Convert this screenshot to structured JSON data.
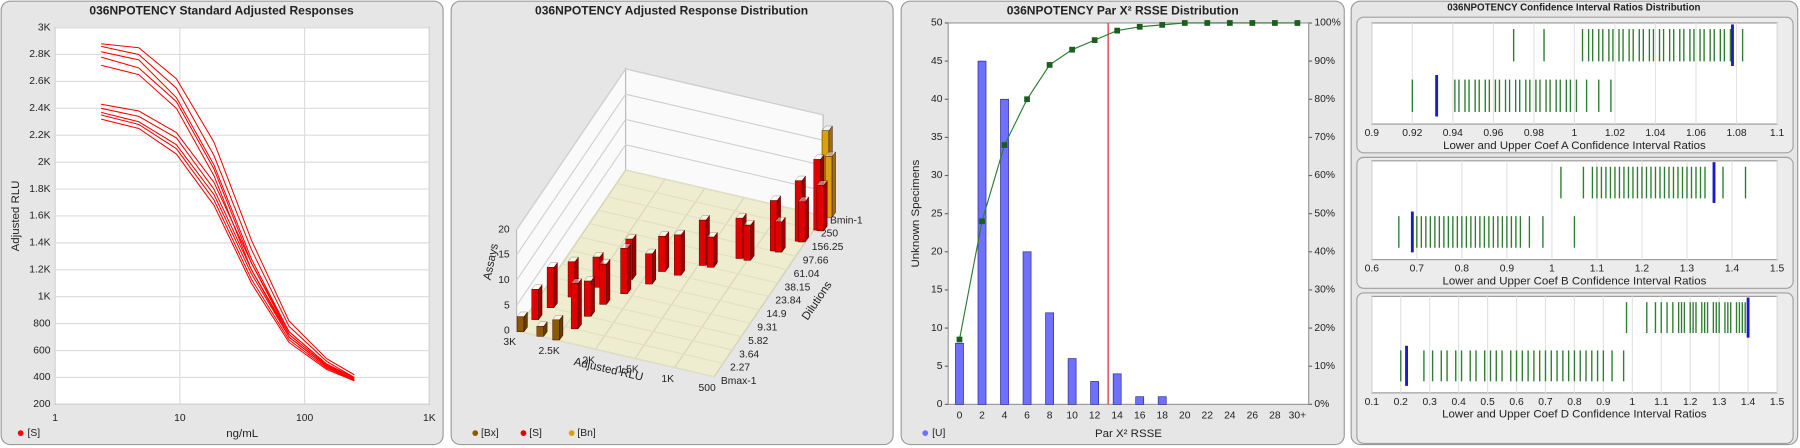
{
  "chart_data": [
    {
      "type": "line",
      "title": "036NPOTENCY Standard Adjusted Responses",
      "xlabel": "ng/mL",
      "ylabel": "Adjusted RLU",
      "xscale": "log",
      "xlim": [
        1,
        1000
      ],
      "xticks": [
        1,
        10,
        100,
        {
          "value": 1000,
          "label": "1K"
        }
      ],
      "ylim": [
        200,
        3000
      ],
      "yticks": [
        200,
        400,
        600,
        800,
        {
          "value": 1000,
          "label": "1K"
        },
        {
          "value": 1200,
          "label": "1.2K"
        },
        {
          "value": 1400,
          "label": "1.4K"
        },
        {
          "value": 1600,
          "label": "1.6K"
        },
        {
          "value": 1800,
          "label": "1.8K"
        },
        {
          "value": 2000,
          "label": "2K"
        },
        {
          "value": 2200,
          "label": "2.2K"
        },
        {
          "value": 2400,
          "label": "2.4K"
        },
        {
          "value": 2600,
          "label": "2.6K"
        },
        {
          "value": 2800,
          "label": "2.8K"
        },
        {
          "value": 3000,
          "label": "3K"
        }
      ],
      "grid": true,
      "legend": "bottom-left",
      "series": [
        {
          "name": "[S]",
          "color": "#ff0000",
          "x": [
            2.34,
            4.69,
            9.38,
            18.75,
            37.5,
            75,
            150,
            250
          ],
          "values": [
            [
              2880,
              2850,
              2620,
              2150,
              1420,
              820,
              540,
              420
            ],
            [
              2860,
              2800,
              2550,
              2050,
              1350,
              780,
              520,
              400
            ],
            [
              2820,
              2760,
              2480,
              1980,
              1280,
              740,
              500,
              390
            ],
            [
              2780,
              2700,
              2450,
              1950,
              1250,
              720,
              490,
              380
            ],
            [
              2720,
              2650,
              2400,
              1900,
              1200,
              700,
              480,
              375
            ],
            [
              2430,
              2380,
              2220,
              1850,
              1250,
              740,
              500,
              400
            ],
            [
              2400,
              2340,
              2180,
              1800,
              1200,
              720,
              490,
              395
            ],
            [
              2370,
              2300,
              2130,
              1760,
              1170,
              700,
              480,
              385
            ],
            [
              2350,
              2280,
              2100,
              1720,
              1130,
              680,
              470,
              380
            ],
            [
              2320,
              2250,
              2060,
              1680,
              1100,
              660,
              460,
              375
            ]
          ]
        }
      ]
    },
    {
      "type": "bar3d",
      "title": "036NPOTENCY Adjusted Response Distribution",
      "xlabel": "Adjusted RLU",
      "ylabel": "Dilutions",
      "zlabel": "Assays",
      "xlim": [
        3000,
        500
      ],
      "xticks": [
        500,
        {
          "value": 1000,
          "label": "1K"
        },
        {
          "value": 1500,
          "label": "1.5K"
        },
        {
          "value": 2000,
          "label": "2K"
        },
        {
          "value": 2500,
          "label": "2.5K"
        },
        {
          "value": 3000,
          "label": "3K"
        }
      ],
      "categories": [
        "Bmax-1",
        "2.27",
        "3.64",
        "5.82",
        "9.31",
        "14.9",
        "23.84",
        "38.15",
        "61.04",
        "97.66",
        "156.25",
        "250",
        "Bmin-1"
      ],
      "zlim": [
        0,
        20
      ],
      "zticks": [
        0,
        5,
        10,
        15,
        20
      ],
      "legend": "bottom-left",
      "series": [
        {
          "name": "[Bx]",
          "color": "#8b5a00",
          "dilution": [
            "Bmax-1",
            "Bmax-1",
            "Bmax-1"
          ],
          "x": [
            2950,
            2700,
            2500
          ],
          "values": [
            3,
            2,
            4
          ]
        },
        {
          "name": "[S]",
          "color": "#e00000",
          "dilution": [
            "2.27",
            "2.27",
            "3.64",
            "3.64",
            "5.82",
            "5.82",
            "9.31",
            "9.31",
            "14.9",
            "14.9",
            "23.84",
            "23.84",
            "38.15",
            "38.15",
            "61.04",
            "61.04",
            "97.66",
            "97.66",
            "156.25",
            "156.25",
            "250",
            "250"
          ],
          "x": [
            2880,
            2380,
            2800,
            2330,
            2650,
            2250,
            2450,
            2100,
            2150,
            1900,
            1850,
            1650,
            1450,
            1350,
            1100,
            1000,
            780,
            720,
            580,
            540,
            460,
            420
          ],
          "values": [
            6,
            9,
            8,
            7,
            7,
            8,
            6,
            9,
            8,
            6,
            7,
            8,
            9,
            6,
            8,
            7,
            10,
            6,
            12,
            8,
            14,
            9
          ]
        },
        {
          "name": "[Bn]",
          "color": "#d9a010",
          "dilution": [
            "Bmin-1",
            "Bmin-1"
          ],
          "x": [
            470,
            430
          ],
          "values": [
            17,
            12
          ]
        }
      ]
    },
    {
      "type": "bar+line",
      "title": "036NPOTENCY Par X² RSSE Distribution",
      "xlabel": "Par X² RSSE",
      "ylabel": "Unknown Specimens",
      "categories": [
        "0",
        "2",
        "4",
        "6",
        "8",
        "10",
        "12",
        "14",
        "16",
        "18",
        "20",
        "22",
        "24",
        "26",
        "28",
        "30+"
      ],
      "ylim": [
        0,
        50
      ],
      "yticks": [
        0,
        5,
        10,
        15,
        20,
        25,
        30,
        35,
        40,
        45,
        50
      ],
      "y2lim": [
        0,
        100
      ],
      "y2ticks": [
        {
          "value": 0,
          "label": "0%"
        },
        {
          "value": 10,
          "label": "10%"
        },
        {
          "value": 20,
          "label": "20%"
        },
        {
          "value": 30,
          "label": "30%"
        },
        {
          "value": 40,
          "label": "40%"
        },
        {
          "value": 50,
          "label": "50%"
        },
        {
          "value": 60,
          "label": "60%"
        },
        {
          "value": 70,
          "label": "70%"
        },
        {
          "value": 80,
          "label": "80%"
        },
        {
          "value": 90,
          "label": "90%"
        },
        {
          "value": 100,
          "label": "100%"
        }
      ],
      "legend": "bottom-left",
      "threshold": 13.2,
      "threshold_color": "#e04040",
      "series": [
        {
          "name": "[U]",
          "color": "#7070ff",
          "values": [
            8,
            45,
            40,
            20,
            12,
            6,
            3,
            4,
            1,
            1,
            0,
            0,
            0,
            0,
            0,
            0
          ]
        },
        {
          "color": "#2e7d32",
          "axis": "y2",
          "values": [
            17,
            48,
            68,
            80,
            89,
            93,
            95.5,
            98,
            99,
            99.5,
            100,
            100,
            100,
            100,
            100,
            100
          ]
        }
      ]
    },
    {
      "type": "strip",
      "title": "036NPOTENCY Confidence Interval Ratios Distribution",
      "charts": [
        {
          "xlabel": "Lower and Upper Coef A Confidence Interval Ratios",
          "xlim": [
            0.9,
            1.1
          ],
          "xticks": [
            0.9,
            0.92,
            0.94,
            0.96,
            0.98,
            1,
            1.02,
            1.04,
            1.06,
            1.08,
            1.1
          ],
          "color": "#2e7d32",
          "marker_color": "#1a1acc",
          "rows": [
            {
              "values": [
                0.97,
                0.985,
                1.004,
                1.007,
                1.009,
                1.012,
                1.014,
                1.017,
                1.019,
                1.022,
                1.024,
                1.027,
                1.029,
                1.032,
                1.034,
                1.037,
                1.039,
                1.042,
                1.044,
                1.047,
                1.049,
                1.052,
                1.054,
                1.057,
                1.059,
                1.062,
                1.064,
                1.067,
                1.069,
                1.072,
                1.074,
                1.077,
                1.083
              ],
              "marker": 1.078
            },
            {
              "values": [
                0.92,
                0.941,
                0.943,
                0.946,
                0.948,
                0.951,
                0.953,
                0.956,
                0.958,
                0.961,
                0.963,
                0.966,
                0.968,
                0.971,
                0.973,
                0.976,
                0.978,
                0.981,
                0.983,
                0.986,
                0.988,
                0.991,
                0.993,
                0.996,
                0.998,
                1.001,
                1.006,
                1.012,
                1.018
              ],
              "marker": 0.932
            }
          ]
        },
        {
          "xlabel": "Lower and Upper Coef B Confidence Interval Ratios",
          "xlim": [
            0.6,
            1.5
          ],
          "xticks": [
            0.6,
            0.7,
            0.8,
            0.9,
            1,
            1.1,
            1.2,
            1.3,
            1.4,
            1.5
          ],
          "color": "#2e7d32",
          "marker_color": "#1a1acc",
          "rows": [
            {
              "values": [
                1.02,
                1.07,
                1.09,
                1.1,
                1.11,
                1.12,
                1.13,
                1.14,
                1.15,
                1.16,
                1.17,
                1.18,
                1.19,
                1.2,
                1.21,
                1.22,
                1.23,
                1.24,
                1.25,
                1.26,
                1.27,
                1.28,
                1.29,
                1.3,
                1.31,
                1.32,
                1.33,
                1.34,
                1.38,
                1.43
              ],
              "marker": 1.36
            },
            {
              "values": [
                0.66,
                0.69,
                0.7,
                0.71,
                0.72,
                0.73,
                0.74,
                0.75,
                0.76,
                0.77,
                0.78,
                0.79,
                0.8,
                0.81,
                0.82,
                0.83,
                0.84,
                0.85,
                0.86,
                0.87,
                0.88,
                0.89,
                0.9,
                0.91,
                0.92,
                0.93,
                0.95,
                0.98,
                1.05
              ],
              "marker": 0.69
            }
          ]
        },
        {
          "xlabel": "Lower and Upper Coef D Confidence Interval Ratios",
          "xlim": [
            0.1,
            1.5
          ],
          "xticks": [
            0.1,
            0.2,
            0.3,
            0.4,
            0.5,
            0.6,
            0.7,
            0.8,
            0.9,
            1,
            1.1,
            1.2,
            1.3,
            1.4,
            1.5
          ],
          "color": "#2e7d32",
          "marker_color": "#1a1acc",
          "rows": [
            {
              "values": [
                0.98,
                1.05,
                1.08,
                1.1,
                1.12,
                1.14,
                1.16,
                1.17,
                1.18,
                1.2,
                1.21,
                1.22,
                1.24,
                1.25,
                1.26,
                1.28,
                1.29,
                1.3,
                1.32,
                1.33,
                1.34,
                1.36,
                1.37,
                1.38,
                1.39
              ],
              "marker": 1.4
            },
            {
              "values": [
                0.2,
                0.28,
                0.31,
                0.34,
                0.36,
                0.39,
                0.41,
                0.44,
                0.46,
                0.49,
                0.51,
                0.53,
                0.55,
                0.58,
                0.6,
                0.62,
                0.64,
                0.66,
                0.68,
                0.7,
                0.72,
                0.74,
                0.76,
                0.78,
                0.8,
                0.82,
                0.84,
                0.86,
                0.88,
                0.9,
                0.93,
                0.97
              ],
              "marker": 0.22
            }
          ]
        }
      ]
    }
  ]
}
